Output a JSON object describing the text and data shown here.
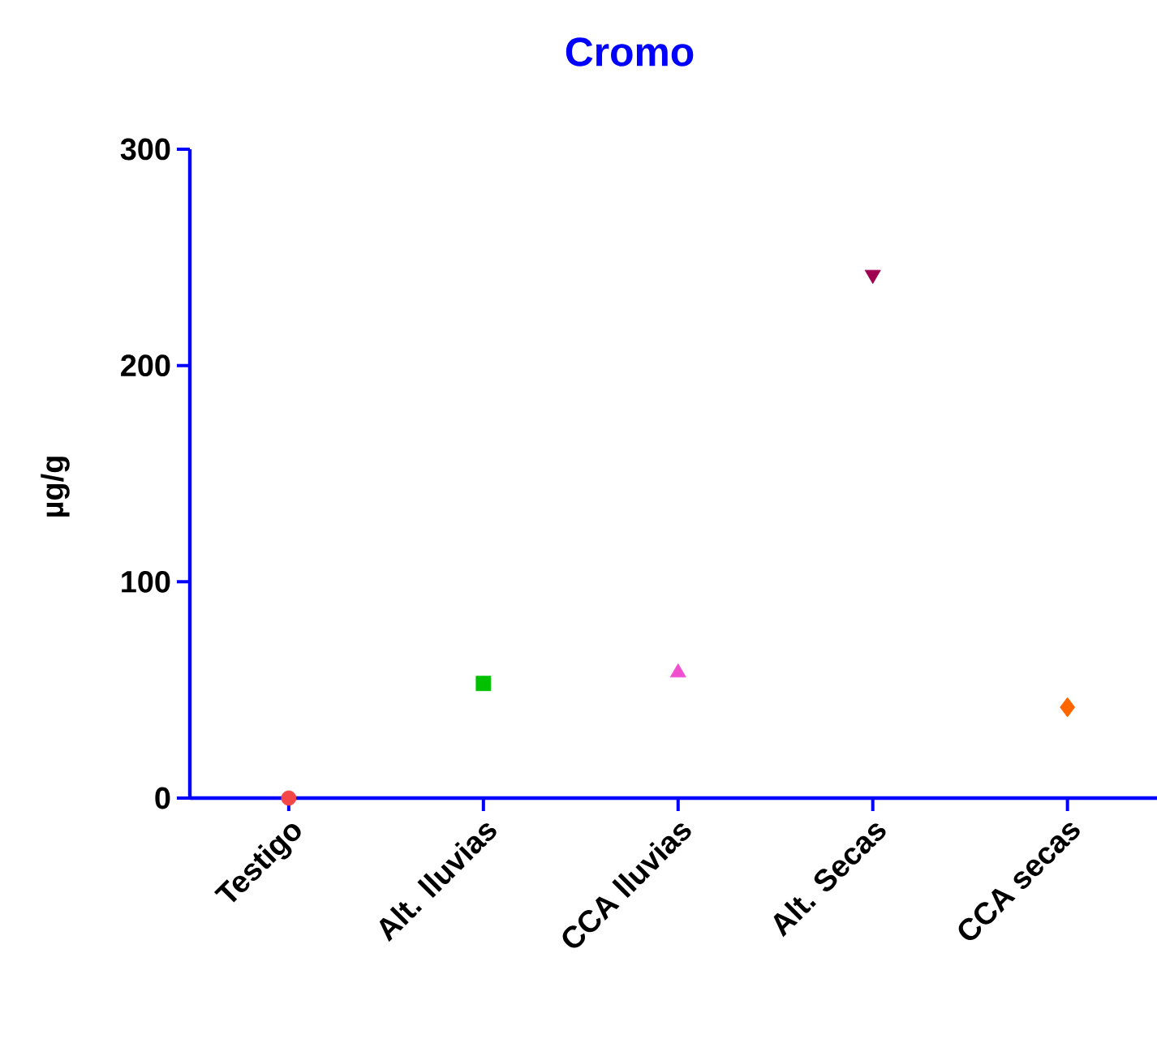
{
  "chart_data": {
    "type": "scatter",
    "title": "Cromo",
    "ylabel": "µg/g",
    "categories": [
      "Testigo",
      "Alt. lluvias",
      "CCA lluvias",
      "Alt. Secas",
      "CCA secas"
    ],
    "ylim": [
      0,
      300
    ],
    "yticks": [
      0,
      100,
      200,
      300
    ],
    "grid": false,
    "series": [
      {
        "color": "#f44848",
        "marker": "circle",
        "values": [
          0,
          null,
          null,
          null,
          null
        ]
      },
      {
        "color": "#00c000",
        "marker": "square",
        "values": [
          null,
          53,
          null,
          null,
          null
        ]
      },
      {
        "color": "#f050d0",
        "marker": "triangle",
        "values": [
          null,
          null,
          58,
          null,
          null
        ]
      },
      {
        "color": "#a00050",
        "marker": "triangle-down",
        "values": [
          null,
          null,
          null,
          242,
          null
        ]
      },
      {
        "color": "#ff6600",
        "marker": "diamond",
        "values": [
          null,
          null,
          null,
          null,
          42
        ]
      }
    ]
  }
}
